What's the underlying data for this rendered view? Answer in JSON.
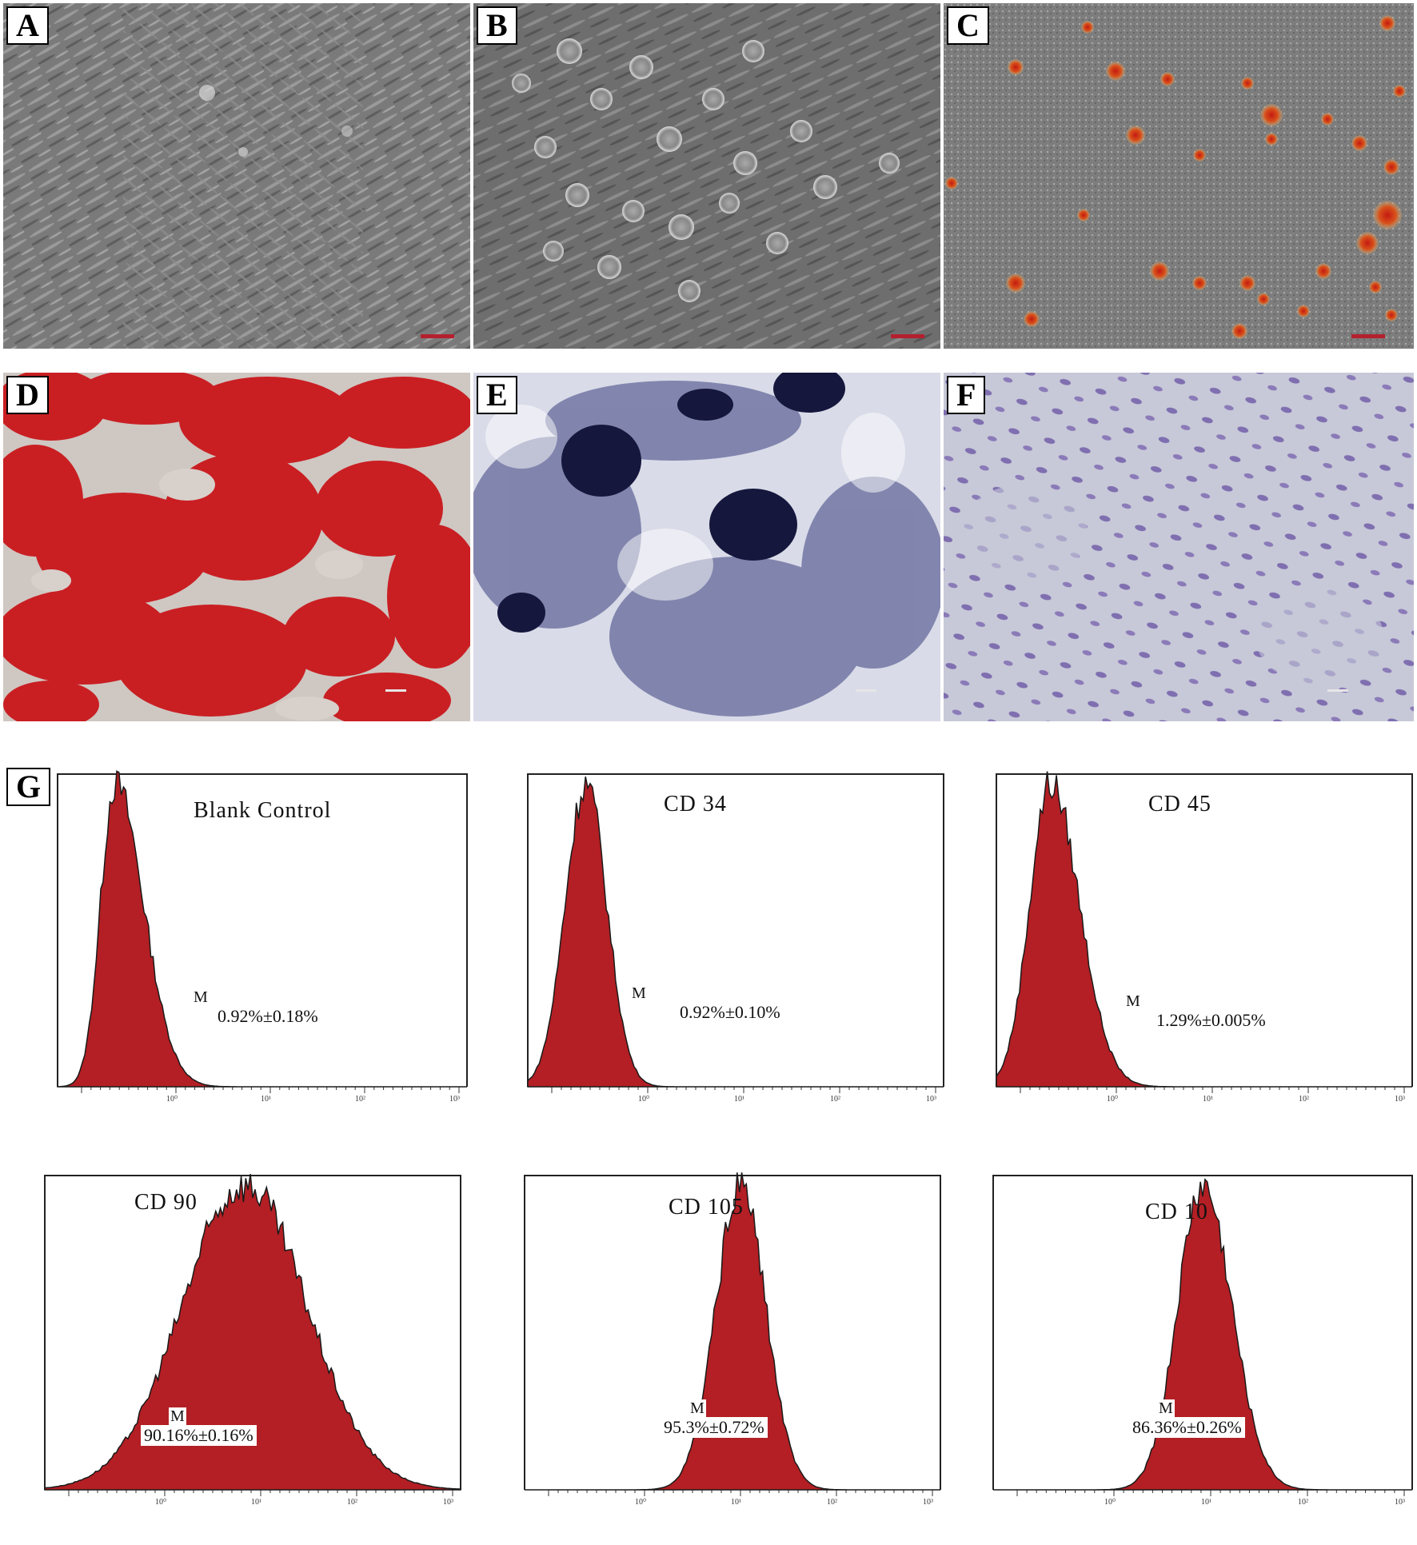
{
  "panels": {
    "A": {
      "label": "A"
    },
    "B": {
      "label": "B"
    },
    "C": {
      "label": "C"
    },
    "D": {
      "label": "D"
    },
    "E": {
      "label": "E"
    },
    "F": {
      "label": "F"
    },
    "G": {
      "label": "G"
    }
  },
  "histograms": [
    {
      "title": "Blank  Control",
      "marker": "M",
      "stat": "0.92%±0.18%"
    },
    {
      "title": "CD 34",
      "marker": "M",
      "stat": "0.92%±0.10%"
    },
    {
      "title": "CD 45",
      "marker": "M",
      "stat": "1.29%±0.005%"
    },
    {
      "title": "CD 90",
      "marker": "M",
      "stat": "90.16%±0.16%"
    },
    {
      "title": "CD 105",
      "marker": "M",
      "stat": "95.3%±0.72%"
    },
    {
      "title": "CD 10",
      "marker": "M",
      "stat": "86.36%±0.26%"
    }
  ],
  "axis_ticks": [
    "10⁰",
    "10¹",
    "10²",
    "10³"
  ],
  "colors": {
    "histogram_fill": "#b31f24",
    "histogram_edge": "#1a1a1a",
    "scalebar": "#b5202e"
  }
}
